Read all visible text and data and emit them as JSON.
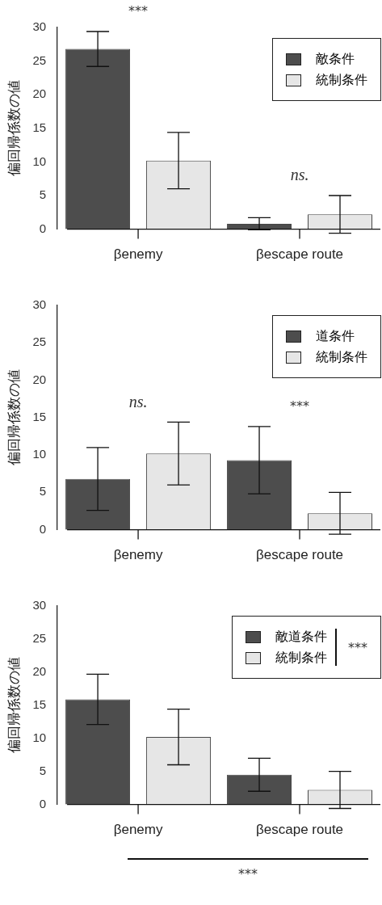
{
  "chart_data": [
    {
      "type": "bar",
      "categories": [
        "βenemy",
        "βescape route"
      ],
      "ylabel": "偏回帰係数の値",
      "ylim": [
        0,
        30
      ],
      "yticks": [
        0,
        5,
        10,
        15,
        20,
        25,
        30
      ],
      "legend": "top right",
      "grid": false,
      "series": [
        {
          "name": "敵条件",
          "color": "#4d4d4d",
          "values": [
            26.8,
            0.8
          ],
          "errors": [
            2.6,
            0.9
          ]
        },
        {
          "name": "統制条件",
          "color": "#e6e6e6",
          "values": [
            10.2,
            2.2
          ],
          "errors": [
            4.2,
            2.8
          ]
        }
      ],
      "annotations": [
        "***",
        "ns."
      ]
    },
    {
      "type": "bar",
      "categories": [
        "βenemy",
        "βescape route"
      ],
      "ylabel": "偏回帰係数の値",
      "ylim": [
        0,
        30
      ],
      "yticks": [
        0,
        5,
        10,
        15,
        20,
        25,
        30
      ],
      "legend": "top right",
      "grid": false,
      "series": [
        {
          "name": "道条件",
          "color": "#4d4d4d",
          "values": [
            6.8,
            9.3
          ],
          "errors": [
            4.2,
            4.5
          ]
        },
        {
          "name": "統制条件",
          "color": "#e6e6e6",
          "values": [
            10.2,
            2.2
          ],
          "errors": [
            4.2,
            2.8
          ]
        }
      ],
      "annotations": [
        "ns.",
        "***"
      ]
    },
    {
      "type": "bar",
      "categories": [
        "βenemy",
        "βescape route"
      ],
      "ylabel": "偏回帰係数の値",
      "ylim": [
        0,
        30
      ],
      "yticks": [
        0,
        5,
        10,
        15,
        20,
        25,
        30
      ],
      "legend": "top right",
      "grid": false,
      "series": [
        {
          "name": "敵道条件",
          "color": "#4d4d4d",
          "values": [
            15.9,
            4.5
          ],
          "errors": [
            3.8,
            2.5
          ]
        },
        {
          "name": "統制条件",
          "color": "#e6e6e6",
          "values": [
            10.2,
            2.2
          ],
          "errors": [
            4.2,
            2.8
          ]
        }
      ],
      "annotations": [
        "***",
        "***"
      ]
    }
  ]
}
